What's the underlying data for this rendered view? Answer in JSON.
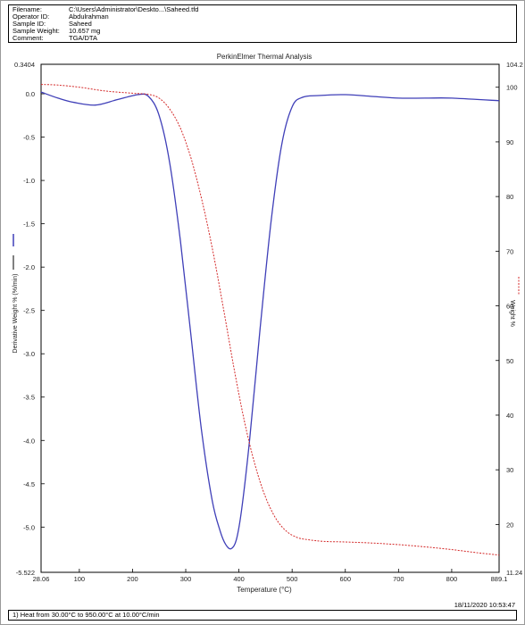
{
  "info": [
    {
      "key": "Filename:",
      "value": "C:\\Users\\Administrator\\Deskto...\\Saheed.tfd"
    },
    {
      "key": "Operator ID:",
      "value": "Abdulrahman"
    },
    {
      "key": "Sample ID:",
      "value": "Saheed"
    },
    {
      "key": "Sample Weight:",
      "value": "10.657 mg"
    },
    {
      "key": "Comment:",
      "value": "TGA/DTA"
    }
  ],
  "footer_text": "1)  Heat from 30.00°C to 950.00°C at 10.00°C/min",
  "timestamp": "18/11/2020 10:53:47",
  "colors": {
    "dtg": "#3f3fb8",
    "weight": "#d42a2a",
    "axes": "#000000"
  },
  "chart_data": {
    "type": "line",
    "title": "PerkinElmer Thermal Analysis",
    "xlabel": "Temperature (°C)",
    "ylabel_left": "Derivative Weight % (%/min)",
    "ylabel_right": "Weight %",
    "xlim": [
      28.06,
      889.1
    ],
    "ylim_left": [
      -5.522,
      0.3404
    ],
    "ylim_right": [
      11.24,
      104.2
    ],
    "x_ticks": [
      "28.06",
      "100",
      "200",
      "300",
      "400",
      "500",
      "600",
      "700",
      "800",
      "889.1"
    ],
    "x_tick_values": [
      28.06,
      100,
      200,
      300,
      400,
      500,
      600,
      700,
      800,
      889.1
    ],
    "left_ticks": [
      "0.3404",
      "0.0",
      "-0.5",
      "-1.0",
      "-1.5",
      "-2.0",
      "-2.5",
      "-3.0",
      "-3.5",
      "-4.0",
      "-4.5",
      "-5.0",
      "-5.522"
    ],
    "left_tick_values": [
      0.3404,
      0.0,
      -0.5,
      -1.0,
      -1.5,
      -2.0,
      -2.5,
      -3.0,
      -3.5,
      -4.0,
      -4.5,
      -5.0,
      -5.522
    ],
    "right_ticks": [
      "104.2",
      "100",
      "90",
      "80",
      "70",
      "60",
      "50",
      "40",
      "30",
      "20",
      "11.24"
    ],
    "right_tick_values": [
      104.2,
      100,
      90,
      80,
      70,
      60,
      50,
      40,
      30,
      20,
      11.24
    ],
    "series": [
      {
        "name": "Derivative Weight %",
        "axis": "left",
        "x": [
          28.06,
          60,
          90,
          130,
          170,
          210,
          230,
          250,
          270,
          290,
          310,
          330,
          350,
          365,
          375,
          385,
          395,
          405,
          420,
          440,
          460,
          480,
          500,
          520,
          550,
          600,
          650,
          700,
          750,
          800,
          889.1
        ],
        "y": [
          0.02,
          -0.05,
          -0.1,
          -0.13,
          -0.07,
          -0.01,
          -0.03,
          -0.25,
          -0.8,
          -1.7,
          -2.8,
          -3.9,
          -4.7,
          -5.05,
          -5.2,
          -5.25,
          -5.15,
          -4.8,
          -4.0,
          -2.7,
          -1.5,
          -0.6,
          -0.15,
          -0.04,
          -0.02,
          -0.01,
          -0.03,
          -0.05,
          -0.05,
          -0.05,
          -0.08
        ]
      },
      {
        "name": "Weight %",
        "axis": "right",
        "x": [
          28.06,
          60,
          100,
          150,
          200,
          230,
          250,
          270,
          290,
          310,
          330,
          350,
          370,
          390,
          410,
          430,
          450,
          470,
          490,
          510,
          530,
          560,
          600,
          650,
          700,
          750,
          800,
          850,
          889.1
        ],
        "y": [
          100.5,
          100.4,
          100.0,
          99.3,
          98.9,
          98.7,
          98.0,
          96.0,
          92.5,
          87.0,
          79.5,
          70.5,
          60.0,
          49.0,
          39.0,
          31.0,
          25.0,
          21.0,
          18.7,
          17.6,
          17.2,
          16.9,
          16.8,
          16.6,
          16.3,
          15.9,
          15.4,
          14.8,
          14.4
        ]
      }
    ]
  }
}
